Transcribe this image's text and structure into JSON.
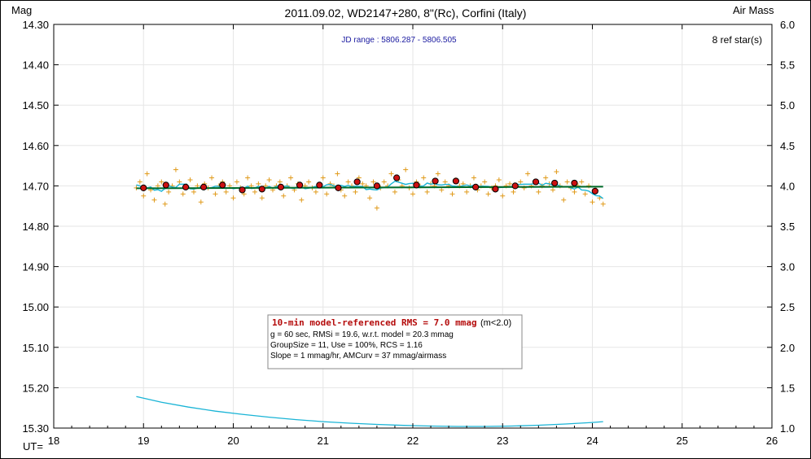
{
  "chart_data": {
    "type": "scatter",
    "title": "2011.09.02, WD2147+280, 8\"(Rc), Corfini (Italy)",
    "ylabel_left": "Mag",
    "ylabel_right": "Air Mass",
    "xlabel": "UT=",
    "jd_range": "JD range : 5806.287 - 5806.505",
    "ref_stars": "8 ref star(s)",
    "x_range": [
      18,
      26
    ],
    "y_left_range": [
      14.3,
      15.3
    ],
    "y_left_inverted": true,
    "y_right_range": [
      1.0,
      6.0
    ],
    "x_ticks": [
      "18",
      "19",
      "20",
      "21",
      "22",
      "23",
      "24",
      "25",
      "26"
    ],
    "y_left_ticks": [
      "14.30",
      "14.40",
      "14.50",
      "14.60",
      "14.70",
      "14.80",
      "14.90",
      "15.00",
      "15.10",
      "15.20",
      "15.30"
    ],
    "y_right_ticks": [
      "6.0",
      "5.5",
      "5.0",
      "4.5",
      "4.0",
      "3.5",
      "3.0",
      "2.5",
      "2.0",
      "1.5",
      "1.0"
    ],
    "series": [
      {
        "name": "individual",
        "marker": "plus",
        "color": "#e09a1a",
        "x": [
          18.92,
          18.96,
          19.0,
          19.04,
          19.08,
          19.12,
          19.16,
          19.2,
          19.24,
          19.28,
          19.32,
          19.36,
          19.4,
          19.44,
          19.48,
          19.52,
          19.56,
          19.6,
          19.64,
          19.68,
          19.72,
          19.76,
          19.8,
          19.84,
          19.88,
          19.92,
          19.96,
          20.0,
          20.04,
          20.08,
          20.12,
          20.16,
          20.2,
          20.24,
          20.28,
          20.32,
          20.36,
          20.4,
          20.44,
          20.48,
          20.52,
          20.56,
          20.6,
          20.64,
          20.68,
          20.72,
          20.76,
          20.8,
          20.84,
          20.88,
          20.92,
          20.96,
          21.0,
          21.04,
          21.08,
          21.12,
          21.16,
          21.2,
          21.24,
          21.28,
          21.32,
          21.36,
          21.4,
          21.44,
          21.48,
          21.52,
          21.56,
          21.6,
          21.64,
          21.68,
          21.72,
          21.76,
          21.8,
          21.84,
          21.88,
          21.92,
          21.96,
          22.0,
          22.04,
          22.08,
          22.12,
          22.16,
          22.2,
          22.24,
          22.28,
          22.32,
          22.36,
          22.4,
          22.44,
          22.48,
          22.52,
          22.56,
          22.6,
          22.64,
          22.68,
          22.72,
          22.76,
          22.8,
          22.84,
          22.88,
          22.92,
          22.96,
          23.0,
          23.04,
          23.08,
          23.12,
          23.16,
          23.2,
          23.24,
          23.28,
          23.32,
          23.36,
          23.4,
          23.44,
          23.48,
          23.52,
          23.56,
          23.6,
          23.64,
          23.68,
          23.72,
          23.76,
          23.8,
          23.84,
          23.88,
          23.92,
          23.96,
          24.0,
          24.04,
          24.08,
          24.12
        ],
        "y": [
          14.705,
          14.69,
          14.725,
          14.67,
          14.71,
          14.735,
          14.7,
          14.69,
          14.745,
          14.715,
          14.7,
          14.66,
          14.69,
          14.72,
          14.7,
          14.685,
          14.715,
          14.7,
          14.74,
          14.695,
          14.705,
          14.68,
          14.72,
          14.7,
          14.69,
          14.715,
          14.7,
          14.73,
          14.69,
          14.705,
          14.72,
          14.68,
          14.7,
          14.715,
          14.695,
          14.73,
          14.7,
          14.685,
          14.71,
          14.7,
          14.69,
          14.725,
          14.7,
          14.68,
          14.71,
          14.695,
          14.735,
          14.7,
          14.69,
          14.705,
          14.715,
          14.7,
          14.68,
          14.72,
          14.695,
          14.7,
          14.67,
          14.71,
          14.725,
          14.69,
          14.7,
          14.715,
          14.68,
          14.695,
          14.7,
          14.73,
          14.69,
          14.755,
          14.705,
          14.69,
          14.7,
          14.67,
          14.715,
          14.685,
          14.7,
          14.66,
          14.705,
          14.72,
          14.69,
          14.7,
          14.68,
          14.715,
          14.695,
          14.7,
          14.67,
          14.71,
          14.69,
          14.7,
          14.72,
          14.685,
          14.7,
          14.695,
          14.715,
          14.7,
          14.68,
          14.71,
          14.7,
          14.69,
          14.72,
          14.705,
          14.7,
          14.685,
          14.725,
          14.7,
          14.695,
          14.715,
          14.7,
          14.69,
          14.705,
          14.67,
          14.7,
          14.69,
          14.715,
          14.7,
          14.68,
          14.695,
          14.71,
          14.665,
          14.7,
          14.735,
          14.69,
          14.705,
          14.715,
          14.7,
          14.69,
          14.72,
          14.7,
          14.74,
          14.71,
          14.73,
          14.745
        ]
      },
      {
        "name": "binned",
        "marker": "circle",
        "color": "#cc1111",
        "x": [
          19.0,
          19.25,
          19.47,
          19.67,
          19.88,
          20.1,
          20.32,
          20.53,
          20.74,
          20.96,
          21.17,
          21.38,
          21.6,
          21.82,
          22.04,
          22.25,
          22.48,
          22.7,
          22.92,
          23.14,
          23.37,
          23.58,
          23.8,
          24.03
        ],
        "y": [
          14.705,
          14.698,
          14.703,
          14.703,
          14.698,
          14.71,
          14.708,
          14.703,
          14.698,
          14.698,
          14.705,
          14.69,
          14.7,
          14.68,
          14.698,
          14.688,
          14.688,
          14.703,
          14.708,
          14.7,
          14.69,
          14.693,
          14.693,
          14.713
        ]
      }
    ],
    "model_line": {
      "x": [
        18.92,
        24.12
      ],
      "y": [
        14.706,
        14.702
      ],
      "color": "#006b2a"
    },
    "airmass": {
      "color": "#1ab4d6",
      "x": [
        18.92,
        19.2,
        19.5,
        19.8,
        20.1,
        20.4,
        20.7,
        21.0,
        21.3,
        21.6,
        21.9,
        22.2,
        22.5,
        22.8,
        23.1,
        23.4,
        23.7,
        24.0,
        24.12
      ],
      "y": [
        1.39,
        1.32,
        1.26,
        1.21,
        1.17,
        1.135,
        1.105,
        1.08,
        1.06,
        1.045,
        1.033,
        1.025,
        1.02,
        1.02,
        1.025,
        1.035,
        1.05,
        1.07,
        1.08
      ]
    },
    "stats_box": {
      "line1": "10-min model-referenced RMS = 7.0 mmag",
      "line1_suffix": "(m<2.0)",
      "line2": "g = 60 sec, RMSi = 19.6, w.r.t. model = 20.3 mmag",
      "line3": "GroupSize = 11, Use = 100%, RCS = 1.16",
      "line4": "Slope = 1 mmag/hr, AMCurv = 37 mmag/airmass"
    }
  }
}
